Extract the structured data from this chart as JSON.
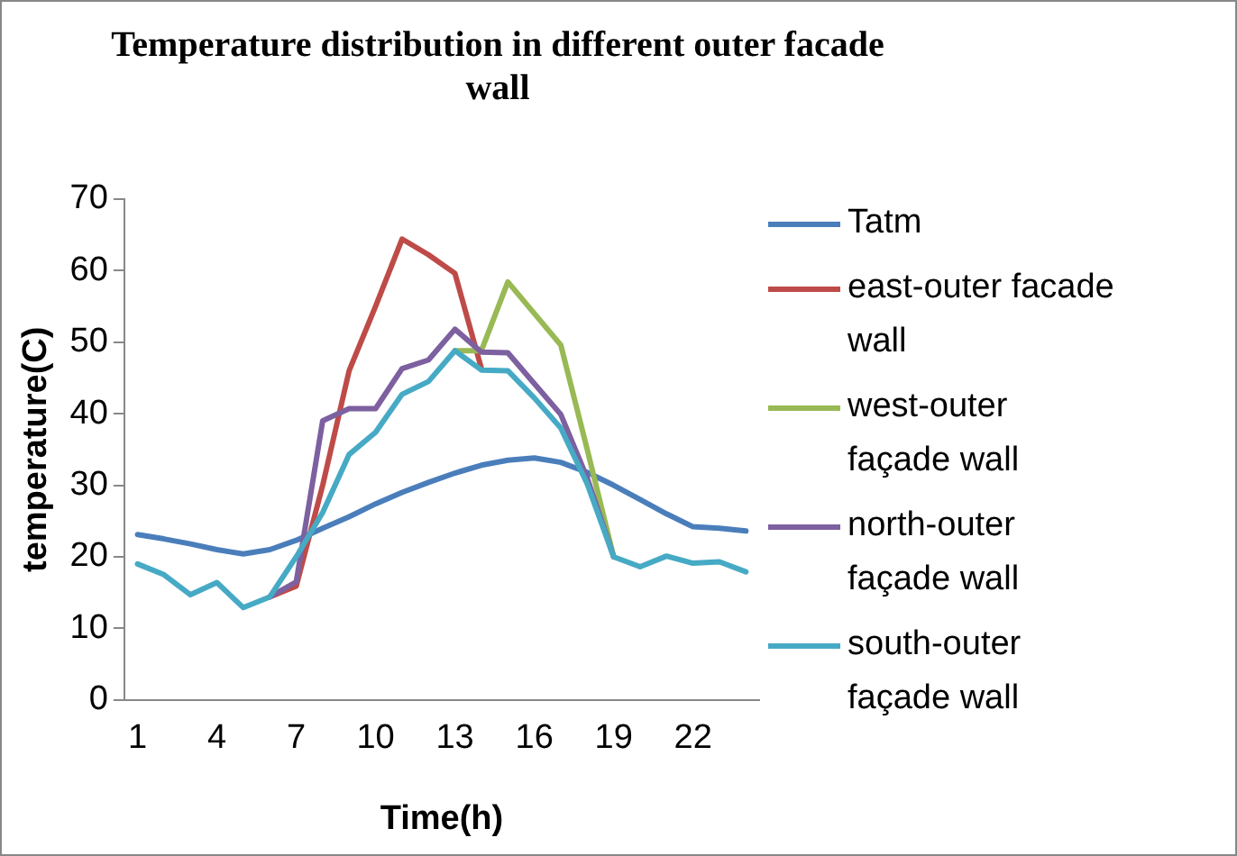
{
  "chart_data": {
    "type": "line",
    "title": "Temperature distribution in different outer facade wall",
    "xlabel": "Time(h)",
    "ylabel": "temperature(C)",
    "categories": [
      "1",
      null,
      null,
      "4",
      null,
      null,
      "7",
      null,
      null,
      "10",
      null,
      null,
      "13",
      null,
      null,
      "16",
      null,
      null,
      "19",
      null,
      null,
      "22",
      null,
      null
    ],
    "ylim": [
      0,
      70
    ],
    "yticks": [
      0,
      10,
      20,
      30,
      40,
      50,
      60,
      70
    ],
    "grid": false,
    "legend": "right",
    "marker": "none",
    "line_style": "solid",
    "series": [
      {
        "name": "Tatm",
        "color": "#4a7ebb",
        "values": [
          23.1,
          22.5,
          21.8,
          21,
          20.4,
          21,
          22.3,
          24,
          25.6,
          27.4,
          29,
          30.4,
          31.7,
          32.8,
          33.5,
          33.8,
          33.2,
          31.8,
          30,
          28,
          26,
          24.2,
          24,
          23.6
        ]
      },
      {
        "name": "east-outer facade wall",
        "color": "#be4b48",
        "values": [
          null,
          null,
          null,
          null,
          null,
          14.4,
          15.9,
          30,
          46,
          55,
          64.4,
          62.2,
          59.6,
          46.3,
          null,
          null,
          null,
          null,
          null,
          null,
          null,
          null,
          null,
          null
        ]
      },
      {
        "name": "west-outer façade wall",
        "color": "#98b954",
        "values": [
          null,
          null,
          null,
          null,
          null,
          null,
          null,
          null,
          null,
          null,
          null,
          null,
          48.8,
          48.8,
          58.4,
          54,
          49.6,
          35,
          20,
          null,
          null,
          null,
          null,
          null
        ]
      },
      {
        "name": "north-outer façade wall",
        "color": "#7d60a0",
        "values": [
          null,
          null,
          null,
          null,
          null,
          14.4,
          16.5,
          39,
          40.7,
          40.7,
          46.3,
          47.5,
          51.8,
          48.6,
          48.5,
          44.2,
          39.9,
          31,
          20,
          null,
          null,
          null,
          null,
          null
        ]
      },
      {
        "name": "south-outer façade wall",
        "color": "#46aac5",
        "values": [
          19,
          17.5,
          14.7,
          16.4,
          12.9,
          14.4,
          20,
          26.2,
          34.3,
          37.4,
          42.7,
          44.5,
          48.8,
          46.1,
          46,
          42.2,
          38,
          30.2,
          20,
          18.6,
          20.1,
          19.1,
          19.3,
          17.9
        ]
      }
    ]
  }
}
